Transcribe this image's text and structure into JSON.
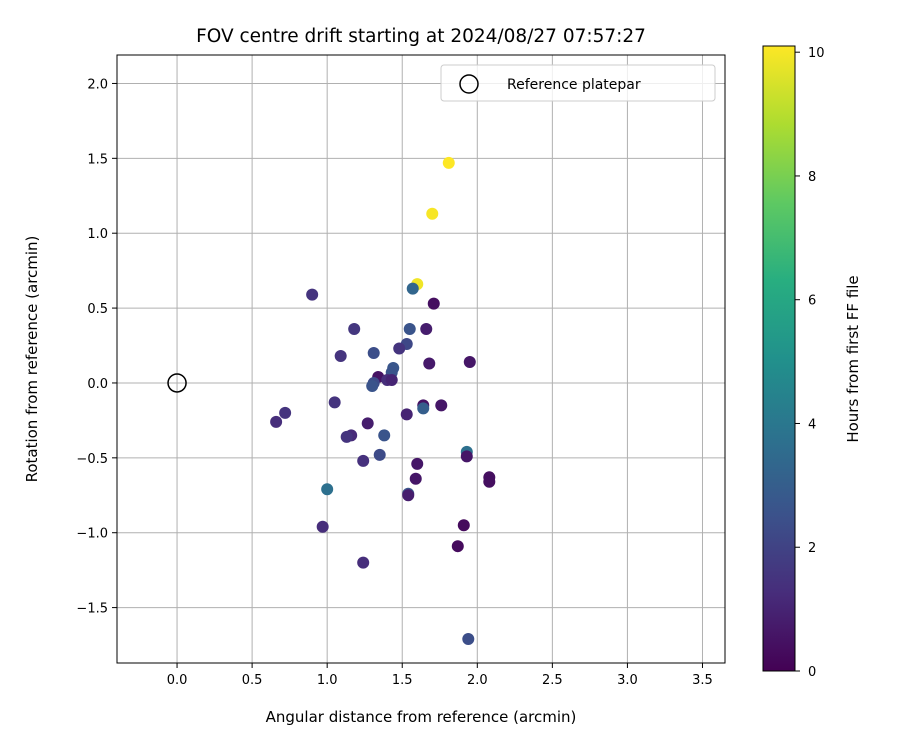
{
  "chart_data": {
    "type": "scatter",
    "title": "FOV centre drift starting at 2024/08/27 07:57:27",
    "xlabel": "Angular distance from reference (arcmin)",
    "ylabel": "Rotation from reference (arcmin)",
    "xlim": [
      -0.4,
      3.65
    ],
    "ylim": [
      -1.87,
      2.19
    ],
    "xticks": [
      0.0,
      0.5,
      1.0,
      1.5,
      2.0,
      2.5,
      3.0,
      3.5
    ],
    "xtick_labels": [
      "0.0",
      "0.5",
      "1.0",
      "1.5",
      "2.0",
      "2.5",
      "3.0",
      "3.5"
    ],
    "yticks": [
      -1.5,
      -1.0,
      -0.5,
      0.0,
      0.5,
      1.0,
      1.5,
      2.0
    ],
    "ytick_labels": [
      "−1.5",
      "−1.0",
      "−0.5",
      "0.0",
      "0.5",
      "1.0",
      "1.5",
      "2.0"
    ],
    "grid": true,
    "legend": {
      "placement": "upper right",
      "entries": [
        "Reference platepar"
      ]
    },
    "reference_point": {
      "x": 0.0,
      "y": 0.0,
      "label": "Reference platepar"
    },
    "colorbar": {
      "label": "Hours from first FF file",
      "colormap": "viridis",
      "range": [
        0,
        10.1
      ],
      "ticks": [
        0,
        2,
        4,
        6,
        8,
        10
      ],
      "tick_labels": [
        "0",
        "2",
        "4",
        "6",
        "8",
        "10"
      ]
    },
    "points": [
      {
        "x": 1.81,
        "y": 1.47,
        "hours": 10.1
      },
      {
        "x": 1.7,
        "y": 1.13,
        "hours": 10.0
      },
      {
        "x": 1.6,
        "y": 0.66,
        "hours": 9.9
      },
      {
        "x": 1.57,
        "y": 0.63,
        "hours": 3.3
      },
      {
        "x": 0.9,
        "y": 0.59,
        "hours": 1.5
      },
      {
        "x": 1.71,
        "y": 0.53,
        "hours": 0.4
      },
      {
        "x": 1.18,
        "y": 0.36,
        "hours": 1.6
      },
      {
        "x": 1.55,
        "y": 0.36,
        "hours": 2.6
      },
      {
        "x": 1.66,
        "y": 0.36,
        "hours": 0.8
      },
      {
        "x": 1.53,
        "y": 0.26,
        "hours": 2.2
      },
      {
        "x": 1.48,
        "y": 0.23,
        "hours": 1.5
      },
      {
        "x": 1.31,
        "y": 0.2,
        "hours": 2.4
      },
      {
        "x": 1.09,
        "y": 0.18,
        "hours": 1.5
      },
      {
        "x": 1.95,
        "y": 0.14,
        "hours": 0.6
      },
      {
        "x": 1.68,
        "y": 0.13,
        "hours": 0.7
      },
      {
        "x": 1.44,
        "y": 0.1,
        "hours": 2.7
      },
      {
        "x": 1.43,
        "y": 0.07,
        "hours": 2.6
      },
      {
        "x": 1.34,
        "y": 0.04,
        "hours": 0.5
      },
      {
        "x": 1.4,
        "y": 0.02,
        "hours": 1.3
      },
      {
        "x": 1.43,
        "y": 0.02,
        "hours": 1.0
      },
      {
        "x": 1.31,
        "y": 0.0,
        "hours": 2.3
      },
      {
        "x": 1.3,
        "y": -0.02,
        "hours": 2.6
      },
      {
        "x": 1.05,
        "y": -0.13,
        "hours": 1.5
      },
      {
        "x": 1.64,
        "y": -0.15,
        "hours": 0.5
      },
      {
        "x": 1.76,
        "y": -0.15,
        "hours": 0.6
      },
      {
        "x": 1.64,
        "y": -0.17,
        "hours": 3.0
      },
      {
        "x": 0.72,
        "y": -0.2,
        "hours": 1.5
      },
      {
        "x": 1.53,
        "y": -0.21,
        "hours": 1.0
      },
      {
        "x": 0.66,
        "y": -0.26,
        "hours": 1.3
      },
      {
        "x": 1.27,
        "y": -0.27,
        "hours": 0.8
      },
      {
        "x": 1.38,
        "y": -0.35,
        "hours": 2.6
      },
      {
        "x": 1.16,
        "y": -0.35,
        "hours": 1.2
      },
      {
        "x": 1.13,
        "y": -0.36,
        "hours": 1.5
      },
      {
        "x": 1.93,
        "y": -0.46,
        "hours": 3.7
      },
      {
        "x": 1.35,
        "y": -0.48,
        "hours": 2.3
      },
      {
        "x": 1.93,
        "y": -0.49,
        "hours": 0.6
      },
      {
        "x": 1.24,
        "y": -0.52,
        "hours": 1.4
      },
      {
        "x": 1.6,
        "y": -0.54,
        "hours": 0.6
      },
      {
        "x": 2.08,
        "y": -0.63,
        "hours": 0.4
      },
      {
        "x": 1.59,
        "y": -0.64,
        "hours": 0.6
      },
      {
        "x": 2.08,
        "y": -0.66,
        "hours": 0.4
      },
      {
        "x": 1.0,
        "y": -0.71,
        "hours": 3.7
      },
      {
        "x": 1.54,
        "y": -0.74,
        "hours": 2.6
      },
      {
        "x": 1.54,
        "y": -0.75,
        "hours": 0.8
      },
      {
        "x": 0.97,
        "y": -0.96,
        "hours": 1.3
      },
      {
        "x": 1.91,
        "y": -0.95,
        "hours": 0.3
      },
      {
        "x": 1.87,
        "y": -1.09,
        "hours": 0.3
      },
      {
        "x": 1.24,
        "y": -1.2,
        "hours": 1.3
      },
      {
        "x": 1.94,
        "y": -1.71,
        "hours": 2.4
      }
    ]
  }
}
